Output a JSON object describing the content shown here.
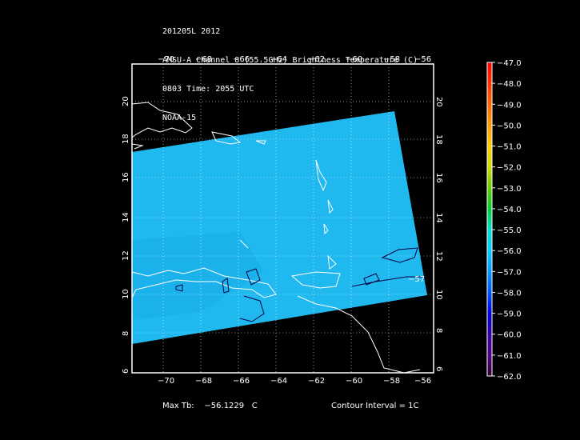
{
  "header": {
    "line1": "201205L 2012",
    "line2": "AMSU-A Channel 8 (55.5GHz) Brightness Temperature (C)",
    "line3": "0803 Time: 2055 UTC",
    "line4": "NOAA-15"
  },
  "axes": {
    "lon_ticks": [
      "−70",
      "−68",
      "−66",
      "−64",
      "−62",
      "−60",
      "−58",
      "−56"
    ],
    "lat_ticks": [
      "20",
      "18",
      "16",
      "14",
      "12",
      "10",
      "8",
      "6"
    ],
    "lon_range": [
      -71.7,
      -55.7
    ],
    "lat_range": [
      5.9,
      22.7
    ]
  },
  "contour_labels": [
    "−57"
  ],
  "colorbar": {
    "labels": [
      "−47.0",
      "−48.0",
      "−49.0",
      "−50.0",
      "−51.0",
      "−52.0",
      "−53.0",
      "−54.0",
      "−55.0",
      "−56.0",
      "−57.0",
      "−58.0",
      "−59.0",
      "−60.0",
      "−61.0",
      "−62.0"
    ],
    "colors": [
      "#ff0000",
      "#ff3300",
      "#ff6600",
      "#ff9900",
      "#ffcc00",
      "#ccdd00",
      "#66cc00",
      "#00cc33",
      "#00ddcc",
      "#00ccff",
      "#0099ff",
      "#0055ff",
      "#0000dd",
      "#3300aa",
      "#550088",
      "#330033"
    ]
  },
  "footer": {
    "max_label": "Max Tb:",
    "max_value": "−56.1229",
    "max_unit": "C",
    "contour_interval": "Contour Interval = 1C"
  },
  "colors": {
    "swath": "#1fb8ef",
    "frame": "#ffffff",
    "background": "#000000",
    "coastline": "#ffffff",
    "contour": "#000044"
  }
}
